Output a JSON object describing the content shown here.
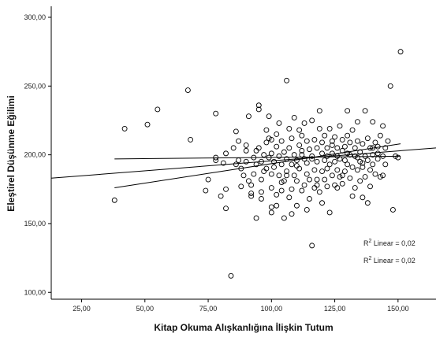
{
  "chart_data": {
    "type": "scatter",
    "xlabel": "Kitap Okuma Alışkanlığına İlişkin Tutum",
    "ylabel": "Eleştirel Düşünme Eğilimi",
    "xlim": [
      13,
      165
    ],
    "ylim": [
      95,
      308
    ],
    "x_ticks": [
      "25,00",
      "50,00",
      "75,00",
      "100,00",
      "125,00",
      "150,00"
    ],
    "x_tick_values": [
      25,
      50,
      75,
      100,
      125,
      150
    ],
    "y_ticks": [
      "100,00",
      "150,00",
      "200,00",
      "250,00",
      "300,00"
    ],
    "y_tick_values": [
      100,
      150,
      200,
      250,
      300
    ],
    "grid": false,
    "marker": "open-circle",
    "annotations": [
      {
        "prefix": "R",
        "sup": "2",
        "suffix": " Linear = 0,02"
      },
      {
        "prefix": "R",
        "sup": "2",
        "suffix": " Linear = 0,02"
      }
    ],
    "fit_lines": [
      {
        "x": [
          13,
          165
        ],
        "y": [
          183,
          205
        ]
      },
      {
        "x": [
          38,
          151
        ],
        "y": [
          176,
          208
        ]
      },
      {
        "x": [
          38,
          151
        ],
        "y": [
          197,
          199
        ]
      }
    ],
    "points": [
      [
        38,
        167
      ],
      [
        42,
        219
      ],
      [
        51,
        222
      ],
      [
        55,
        233
      ],
      [
        67,
        247
      ],
      [
        68,
        211
      ],
      [
        74,
        174
      ],
      [
        75,
        182
      ],
      [
        78,
        230
      ],
      [
        78,
        198
      ],
      [
        78,
        196
      ],
      [
        80,
        170
      ],
      [
        81,
        194
      ],
      [
        82,
        161
      ],
      [
        82,
        175
      ],
      [
        82,
        201
      ],
      [
        84,
        112
      ],
      [
        85,
        205
      ],
      [
        86,
        217
      ],
      [
        87,
        210
      ],
      [
        87,
        196
      ],
      [
        88,
        190
      ],
      [
        89,
        185
      ],
      [
        90,
        203
      ],
      [
        90,
        195
      ],
      [
        91,
        228
      ],
      [
        91,
        181
      ],
      [
        92,
        178
      ],
      [
        92,
        172
      ],
      [
        92,
        170
      ],
      [
        93,
        198
      ],
      [
        93,
        186
      ],
      [
        94,
        154
      ],
      [
        94,
        193
      ],
      [
        95,
        236
      ],
      [
        95,
        233
      ],
      [
        95,
        205
      ],
      [
        96,
        173
      ],
      [
        96,
        182
      ],
      [
        96,
        195
      ],
      [
        97,
        188
      ],
      [
        97,
        200
      ],
      [
        98,
        218
      ],
      [
        98,
        209
      ],
      [
        98,
        190
      ],
      [
        99,
        228
      ],
      [
        99,
        212
      ],
      [
        99,
        198
      ],
      [
        100,
        162
      ],
      [
        100,
        158
      ],
      [
        100,
        176
      ],
      [
        100,
        201
      ],
      [
        100,
        186
      ],
      [
        101,
        195
      ],
      [
        101,
        191
      ],
      [
        102,
        171
      ],
      [
        102,
        206
      ],
      [
        102,
        215
      ],
      [
        103,
        223
      ],
      [
        103,
        199
      ],
      [
        103,
        185
      ],
      [
        104,
        174
      ],
      [
        104,
        193
      ],
      [
        104,
        210
      ],
      [
        105,
        154
      ],
      [
        105,
        181
      ],
      [
        105,
        202
      ],
      [
        106,
        254
      ],
      [
        106,
        197
      ],
      [
        106,
        188
      ],
      [
        107,
        219
      ],
      [
        107,
        205
      ],
      [
        107,
        169
      ],
      [
        108,
        175
      ],
      [
        108,
        193
      ],
      [
        108,
        212
      ],
      [
        109,
        227
      ],
      [
        109,
        185
      ],
      [
        109,
        200
      ],
      [
        110,
        196
      ],
      [
        110,
        181
      ],
      [
        110,
        163
      ],
      [
        111,
        218
      ],
      [
        111,
        207
      ],
      [
        111,
        190
      ],
      [
        112,
        174
      ],
      [
        112,
        203
      ],
      [
        112,
        214
      ],
      [
        113,
        223
      ],
      [
        113,
        178
      ],
      [
        113,
        197
      ],
      [
        114,
        186
      ],
      [
        114,
        194
      ],
      [
        114,
        210
      ],
      [
        115,
        168
      ],
      [
        115,
        204
      ],
      [
        115,
        182
      ],
      [
        116,
        134
      ],
      [
        116,
        225
      ],
      [
        116,
        199
      ],
      [
        117,
        176
      ],
      [
        117,
        189
      ],
      [
        117,
        211
      ],
      [
        118,
        205
      ],
      [
        118,
        195
      ],
      [
        118,
        182
      ],
      [
        119,
        232
      ],
      [
        119,
        173
      ],
      [
        119,
        219
      ],
      [
        120,
        201
      ],
      [
        120,
        188
      ],
      [
        120,
        209
      ],
      [
        121,
        214
      ],
      [
        121,
        196
      ],
      [
        121,
        182
      ],
      [
        122,
        205
      ],
      [
        122,
        177
      ],
      [
        122,
        199
      ],
      [
        123,
        219
      ],
      [
        123,
        193
      ],
      [
        123,
        158
      ],
      [
        124,
        210
      ],
      [
        124,
        185
      ],
      [
        124,
        201
      ],
      [
        125,
        195
      ],
      [
        125,
        213
      ],
      [
        125,
        178
      ],
      [
        126,
        205
      ],
      [
        126,
        189
      ],
      [
        126,
        199
      ],
      [
        127,
        221
      ],
      [
        127,
        184
      ],
      [
        127,
        197
      ],
      [
        128,
        203
      ],
      [
        128,
        179
      ],
      [
        128,
        211
      ],
      [
        129,
        196
      ],
      [
        129,
        188
      ],
      [
        129,
        206
      ],
      [
        130,
        232
      ],
      [
        130,
        193
      ],
      [
        130,
        214
      ],
      [
        131,
        183
      ],
      [
        131,
        200
      ],
      [
        131,
        209
      ],
      [
        132,
        218
      ],
      [
        132,
        191
      ],
      [
        133,
        199
      ],
      [
        133,
        176
      ],
      [
        133,
        205
      ],
      [
        134,
        224
      ],
      [
        134,
        189
      ],
      [
        134,
        210
      ],
      [
        135,
        195
      ],
      [
        135,
        181
      ],
      [
        135,
        202
      ],
      [
        136,
        208
      ],
      [
        136,
        191
      ],
      [
        136,
        169
      ],
      [
        137,
        232
      ],
      [
        137,
        199
      ],
      [
        137,
        184
      ],
      [
        138,
        212
      ],
      [
        138,
        196
      ],
      [
        139,
        177
      ],
      [
        139,
        205
      ],
      [
        139,
        189
      ],
      [
        140,
        224
      ],
      [
        140,
        200
      ],
      [
        140,
        193
      ],
      [
        141,
        209
      ],
      [
        141,
        186
      ],
      [
        142,
        197
      ],
      [
        142,
        206
      ],
      [
        143,
        184
      ],
      [
        143,
        214
      ],
      [
        144,
        221
      ],
      [
        144,
        199
      ],
      [
        145,
        193
      ],
      [
        145,
        205
      ],
      [
        147,
        250
      ],
      [
        148,
        160
      ],
      [
        149,
        199
      ],
      [
        150,
        198
      ],
      [
        151,
        275
      ],
      [
        146,
        210
      ],
      [
        144,
        185
      ],
      [
        138,
        165
      ],
      [
        132,
        170
      ],
      [
        126,
        176
      ],
      [
        120,
        165
      ],
      [
        114,
        160
      ],
      [
        108,
        157
      ],
      [
        102,
        163
      ],
      [
        96,
        168
      ],
      [
        90,
        207
      ],
      [
        86,
        193
      ],
      [
        118,
        178
      ],
      [
        124,
        207
      ],
      [
        130,
        201
      ],
      [
        136,
        194
      ],
      [
        142,
        201
      ],
      [
        112,
        200
      ],
      [
        106,
        185
      ],
      [
        100,
        211
      ],
      [
        94,
        203
      ],
      [
        88,
        177
      ],
      [
        116,
        197
      ],
      [
        122,
        190
      ],
      [
        128,
        185
      ],
      [
        134,
        198
      ],
      [
        140,
        205
      ],
      [
        110,
        192
      ],
      [
        104,
        180
      ]
    ]
  }
}
